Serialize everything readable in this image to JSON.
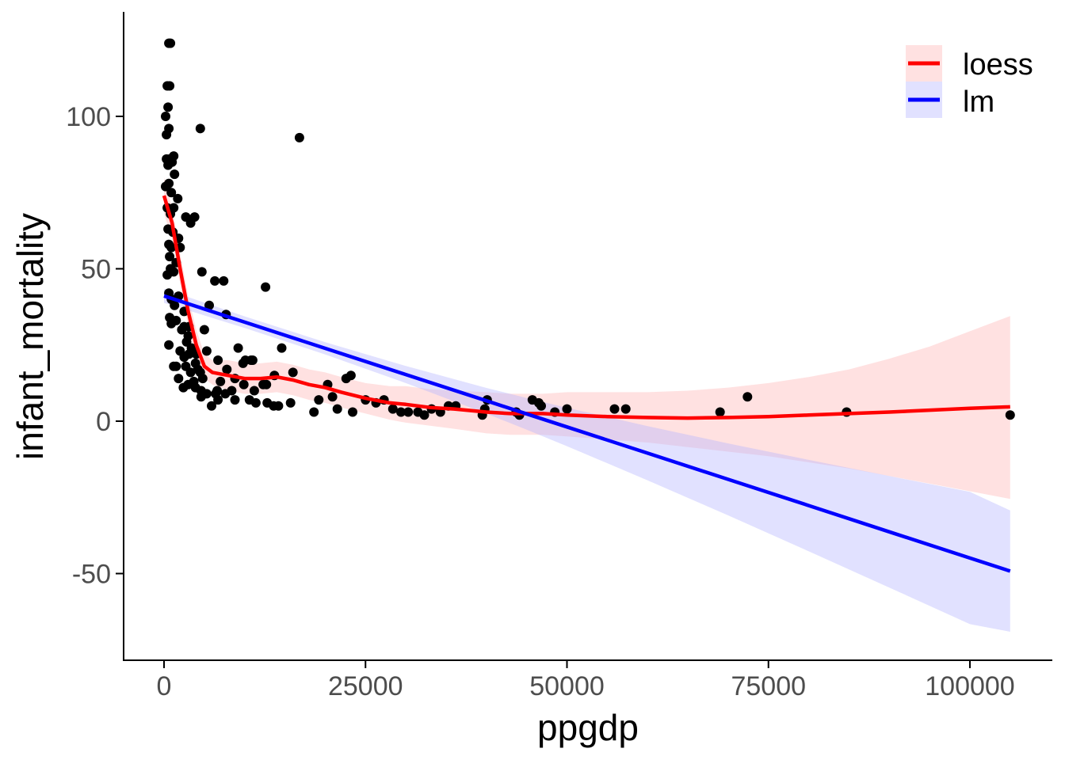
{
  "chart_data": {
    "type": "scatter",
    "title": "",
    "xlabel": "ppgdp",
    "ylabel": "infant_mortality",
    "xlim": [
      -5000,
      110000
    ],
    "ylim": [
      -77,
      135
    ],
    "x_ticks": [
      0,
      25000,
      50000,
      75000,
      100000
    ],
    "x_tick_labels": [
      "0",
      "25000",
      "50000",
      "75000",
      "100000"
    ],
    "y_ticks": [
      -50,
      0,
      50,
      100
    ],
    "y_tick_labels": [
      "-50",
      "0",
      "50",
      "100"
    ],
    "grid": false,
    "legend_position": "top-right",
    "colors": {
      "points": "#000000",
      "loess_line": "#ff0000",
      "loess_band": "#ffb3b3",
      "lm_line": "#0000ff",
      "lm_band": "#b3b3ff",
      "axis": "#000000",
      "tick_text": "#4d4d4d"
    },
    "points": [
      [
        600,
        124
      ],
      [
        800,
        124
      ],
      [
        400,
        110
      ],
      [
        700,
        110
      ],
      [
        500,
        103
      ],
      [
        200,
        100
      ],
      [
        600,
        96
      ],
      [
        300,
        94
      ],
      [
        4500,
        96
      ],
      [
        16800,
        93
      ],
      [
        1200,
        87
      ],
      [
        300,
        86
      ],
      [
        700,
        86
      ],
      [
        1000,
        85
      ],
      [
        500,
        84
      ],
      [
        1300,
        81
      ],
      [
        200,
        77
      ],
      [
        600,
        78
      ],
      [
        900,
        75
      ],
      [
        1700,
        73
      ],
      [
        400,
        70
      ],
      [
        1200,
        70
      ],
      [
        800,
        68
      ],
      [
        3800,
        67
      ],
      [
        2700,
        67
      ],
      [
        3300,
        65
      ],
      [
        500,
        63
      ],
      [
        1100,
        62
      ],
      [
        1800,
        60
      ],
      [
        600,
        58
      ],
      [
        900,
        57
      ],
      [
        2000,
        57
      ],
      [
        700,
        54
      ],
      [
        1500,
        52
      ],
      [
        800,
        50
      ],
      [
        400,
        48
      ],
      [
        1200,
        49
      ],
      [
        4700,
        49
      ],
      [
        6300,
        46
      ],
      [
        7400,
        46
      ],
      [
        12600,
        44
      ],
      [
        600,
        42
      ],
      [
        1800,
        41
      ],
      [
        900,
        40
      ],
      [
        1300,
        38
      ],
      [
        5600,
        38
      ],
      [
        2500,
        36
      ],
      [
        700,
        34
      ],
      [
        7700,
        35
      ],
      [
        1500,
        33
      ],
      [
        2500,
        31
      ],
      [
        3100,
        31
      ],
      [
        900,
        32
      ],
      [
        2200,
        30
      ],
      [
        3000,
        28
      ],
      [
        5000,
        30
      ],
      [
        2800,
        26
      ],
      [
        3400,
        24
      ],
      [
        2000,
        23
      ],
      [
        4000,
        22
      ],
      [
        600,
        25
      ],
      [
        5300,
        23
      ],
      [
        3100,
        22
      ],
      [
        2500,
        21
      ],
      [
        3900,
        19
      ],
      [
        2700,
        18
      ],
      [
        1500,
        18
      ],
      [
        4200,
        17
      ],
      [
        1200,
        18
      ],
      [
        3300,
        16
      ],
      [
        4500,
        16
      ],
      [
        6700,
        20
      ],
      [
        9200,
        24
      ],
      [
        10100,
        20
      ],
      [
        10800,
        20
      ],
      [
        9800,
        19
      ],
      [
        11000,
        20
      ],
      [
        14600,
        24
      ],
      [
        7800,
        17
      ],
      [
        8800,
        14
      ],
      [
        13700,
        15
      ],
      [
        16000,
        16
      ],
      [
        4800,
        14
      ],
      [
        3700,
        13
      ],
      [
        7000,
        13
      ],
      [
        9900,
        12
      ],
      [
        12300,
        12
      ],
      [
        12700,
        12
      ],
      [
        3000,
        12
      ],
      [
        1800,
        14
      ],
      [
        2400,
        11
      ],
      [
        3900,
        11
      ],
      [
        4600,
        10
      ],
      [
        6600,
        10
      ],
      [
        8400,
        10
      ],
      [
        11200,
        10
      ],
      [
        5300,
        9
      ],
      [
        6400,
        9
      ],
      [
        7600,
        9
      ],
      [
        4600,
        8
      ],
      [
        6700,
        7
      ],
      [
        8800,
        7
      ],
      [
        10600,
        7
      ],
      [
        11400,
        6
      ],
      [
        12800,
        6
      ],
      [
        13600,
        5
      ],
      [
        14200,
        5
      ],
      [
        5900,
        5
      ],
      [
        15700,
        6
      ],
      [
        18600,
        3
      ],
      [
        19200,
        7
      ],
      [
        20300,
        12
      ],
      [
        20900,
        8
      ],
      [
        21500,
        4
      ],
      [
        22600,
        14
      ],
      [
        23200,
        15
      ],
      [
        23400,
        3
      ],
      [
        25000,
        7
      ],
      [
        26300,
        6
      ],
      [
        27300,
        7
      ],
      [
        28400,
        4
      ],
      [
        29400,
        3
      ],
      [
        30300,
        3
      ],
      [
        31500,
        3
      ],
      [
        32300,
        2
      ],
      [
        33200,
        4
      ],
      [
        34300,
        3
      ],
      [
        35300,
        5
      ],
      [
        36200,
        5
      ],
      [
        39500,
        2
      ],
      [
        39800,
        4
      ],
      [
        40100,
        7
      ],
      [
        43700,
        3
      ],
      [
        44100,
        2
      ],
      [
        45700,
        7
      ],
      [
        46500,
        6
      ],
      [
        46800,
        5
      ],
      [
        48500,
        3
      ],
      [
        50000,
        4
      ],
      [
        55900,
        4
      ],
      [
        57300,
        4
      ],
      [
        69000,
        3
      ],
      [
        72400,
        8
      ],
      [
        84700,
        3
      ],
      [
        105000,
        2
      ]
    ],
    "series": [
      {
        "name": "loess",
        "x": [
          0,
          1000,
          2000,
          3000,
          4000,
          5000,
          6000,
          8000,
          10000,
          12000,
          14000,
          16000,
          18000,
          20000,
          22000,
          25000,
          28000,
          30000,
          33000,
          36000,
          40000,
          43000,
          47000,
          50000,
          55000,
          60000,
          65000,
          70000,
          75000,
          80000,
          85000,
          90000,
          95000,
          100000,
          105000
        ],
        "y": [
          74,
          65,
          50,
          36,
          25,
          18,
          16,
          15,
          14,
          14,
          14.5,
          13.5,
          12,
          11,
          9.5,
          7.5,
          6,
          5.5,
          4.5,
          4,
          3,
          2.5,
          2.5,
          2,
          1.5,
          1.2,
          1,
          1.2,
          1.5,
          2,
          2.5,
          3,
          3.6,
          4.2,
          4.7
        ],
        "lower": [
          68,
          60,
          45,
          31,
          20,
          14,
          12,
          10,
          9,
          9,
          9.5,
          8.5,
          7,
          6,
          4.5,
          2.5,
          0.5,
          -0.5,
          -1.5,
          -2.5,
          -4,
          -4.5,
          -4.5,
          -5,
          -6,
          -7,
          -8.5,
          -10,
          -11.5,
          -13.5,
          -15.5,
          -18,
          -20.5,
          -23,
          -25.5
        ],
        "upper": [
          80,
          70,
          55,
          41,
          30,
          22,
          20,
          20,
          19,
          19,
          19.5,
          18.5,
          17,
          16,
          14.5,
          12.5,
          11.5,
          11.5,
          10.5,
          10,
          9.5,
          9,
          9,
          9.5,
          9.5,
          9.5,
          10,
          11,
          12.5,
          14.5,
          17,
          20.5,
          24.5,
          29.5,
          34.5
        ]
      },
      {
        "name": "lm",
        "x": [
          0,
          10000,
          20000,
          30000,
          40000,
          45000,
          50000,
          60000,
          70000,
          80000,
          90000,
          100000,
          105000
        ],
        "y": [
          41.1,
          32.5,
          23.9,
          15.3,
          6.7,
          2.4,
          -1.9,
          -10.5,
          -19.1,
          -27.7,
          -36.3,
          -44.9,
          -49.2
        ],
        "lower": [
          38.8,
          30.6,
          21.9,
          12.5,
          2.5,
          -2.8,
          -8.2,
          -19.4,
          -30.9,
          -42.7,
          -54.6,
          -66.6,
          -69.1
        ],
        "upper": [
          43.4,
          34.4,
          25.9,
          18.1,
          10.9,
          7.6,
          4.4,
          -1.6,
          -7.3,
          -12.7,
          -18.0,
          -23.2,
          -29.3
        ]
      }
    ],
    "legend": [
      {
        "label": "loess",
        "line_color": "#ff0000",
        "fill_color": "#ffb3b3"
      },
      {
        "label": "lm",
        "line_color": "#0000ff",
        "fill_color": "#b3b3ff"
      }
    ]
  }
}
